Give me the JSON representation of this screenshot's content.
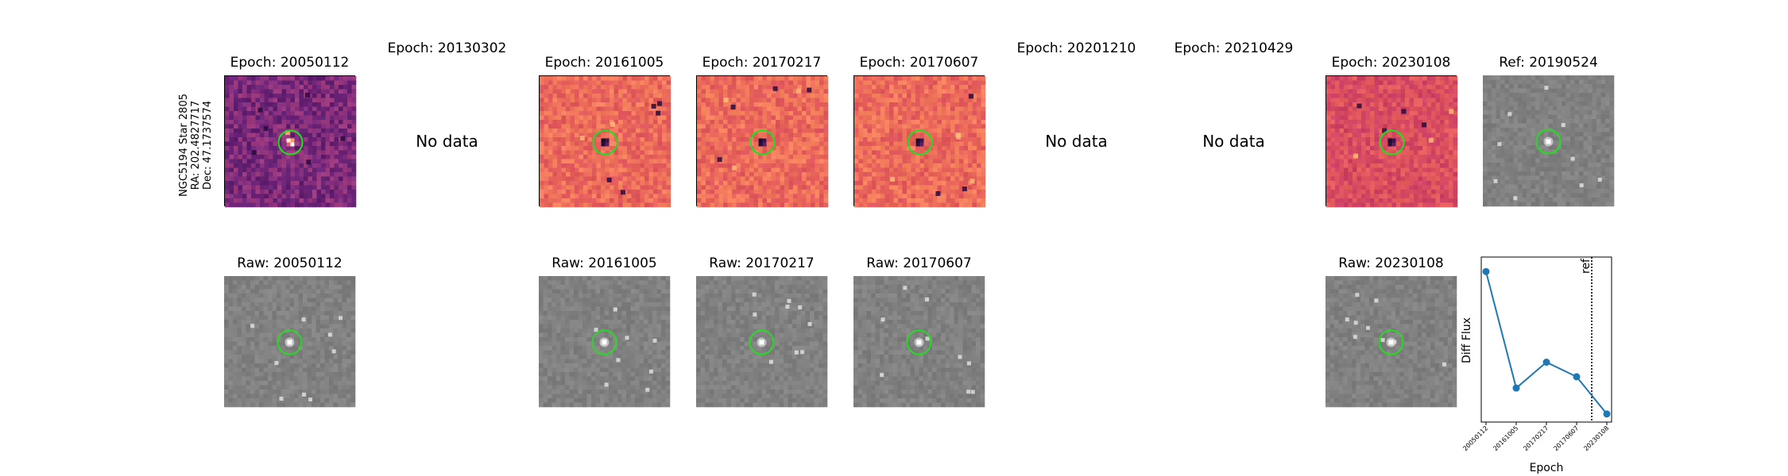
{
  "row_label": {
    "line1": "NGC5194 Star 2805",
    "line2": "RA: 202.4827717",
    "line3": "Dec: 47.1737574"
  },
  "diff_panels": [
    {
      "title": "Epoch: 20050112",
      "has_data": true,
      "colormap": "magma-dark",
      "residual": "positive"
    },
    {
      "title": "Epoch: 20130302",
      "has_data": false,
      "nodata_text": "No data"
    },
    {
      "title": "Epoch: 20161005",
      "has_data": true,
      "colormap": "magma-light",
      "residual": "negative"
    },
    {
      "title": "Epoch: 20170217",
      "has_data": true,
      "colormap": "magma-light",
      "residual": "negative"
    },
    {
      "title": "Epoch: 20170607",
      "has_data": true,
      "colormap": "magma-light",
      "residual": "negative"
    },
    {
      "title": "Epoch: 20201210",
      "has_data": false,
      "nodata_text": "No data"
    },
    {
      "title": "Epoch: 20210429",
      "has_data": false,
      "nodata_text": "No data"
    },
    {
      "title": "Epoch: 20230108",
      "has_data": true,
      "colormap": "magma-mid",
      "residual": "negative"
    },
    {
      "title": "Ref: 20190524",
      "has_data": true,
      "colormap": "gray",
      "residual": "star"
    }
  ],
  "raw_panels": [
    {
      "title": "Raw: 20050112",
      "visible": true
    },
    {
      "title": "",
      "visible": false
    },
    {
      "title": "Raw: 20161005",
      "visible": true
    },
    {
      "title": "Raw: 20170217",
      "visible": true
    },
    {
      "title": "Raw: 20170607",
      "visible": true
    },
    {
      "title": "",
      "visible": false
    },
    {
      "title": "",
      "visible": false
    },
    {
      "title": "Raw: 20230108",
      "visible": true
    }
  ],
  "colors": {
    "marker_circle": "#22dd22",
    "line": "#1f77b4"
  },
  "chart_data": {
    "type": "line",
    "title": "",
    "xlabel": "Epoch",
    "ylabel": "Diff Flux",
    "categories": [
      "20050112",
      "20161005",
      "20170217",
      "20170607",
      "20230108"
    ],
    "values": [
      1.0,
      0.28,
      0.44,
      0.35,
      0.12
    ],
    "ylim": [
      0.07,
      1.09
    ],
    "yticks_shown": false,
    "reference_line": {
      "label": "ref",
      "position_epoch_index": 3.5,
      "style": "dotted"
    },
    "grid": false
  }
}
